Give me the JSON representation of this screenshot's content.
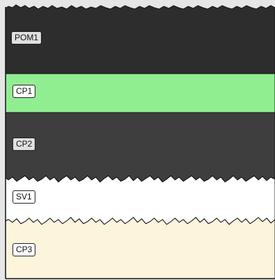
{
  "layers": [
    {
      "id": "pom1",
      "label": "POM1",
      "fill": "#2d2d2d",
      "label_bg": "#e0e0e0"
    },
    {
      "id": "cp1",
      "label": "CP1",
      "fill": "#90ee90",
      "label_bg": "#ffffff"
    },
    {
      "id": "cp2",
      "label": "CP2",
      "fill": "#3e3e3e",
      "label_bg": "#e0e0e0"
    },
    {
      "id": "sv1",
      "label": "SV1",
      "fill": "#ffffff",
      "label_bg": "#ffffff"
    },
    {
      "id": "cp3",
      "label": "CP3",
      "fill": "#fdf4dc",
      "label_bg": "#ffffff"
    }
  ],
  "colors": {
    "background": "#e6e6e6",
    "stroke": "#111111"
  }
}
